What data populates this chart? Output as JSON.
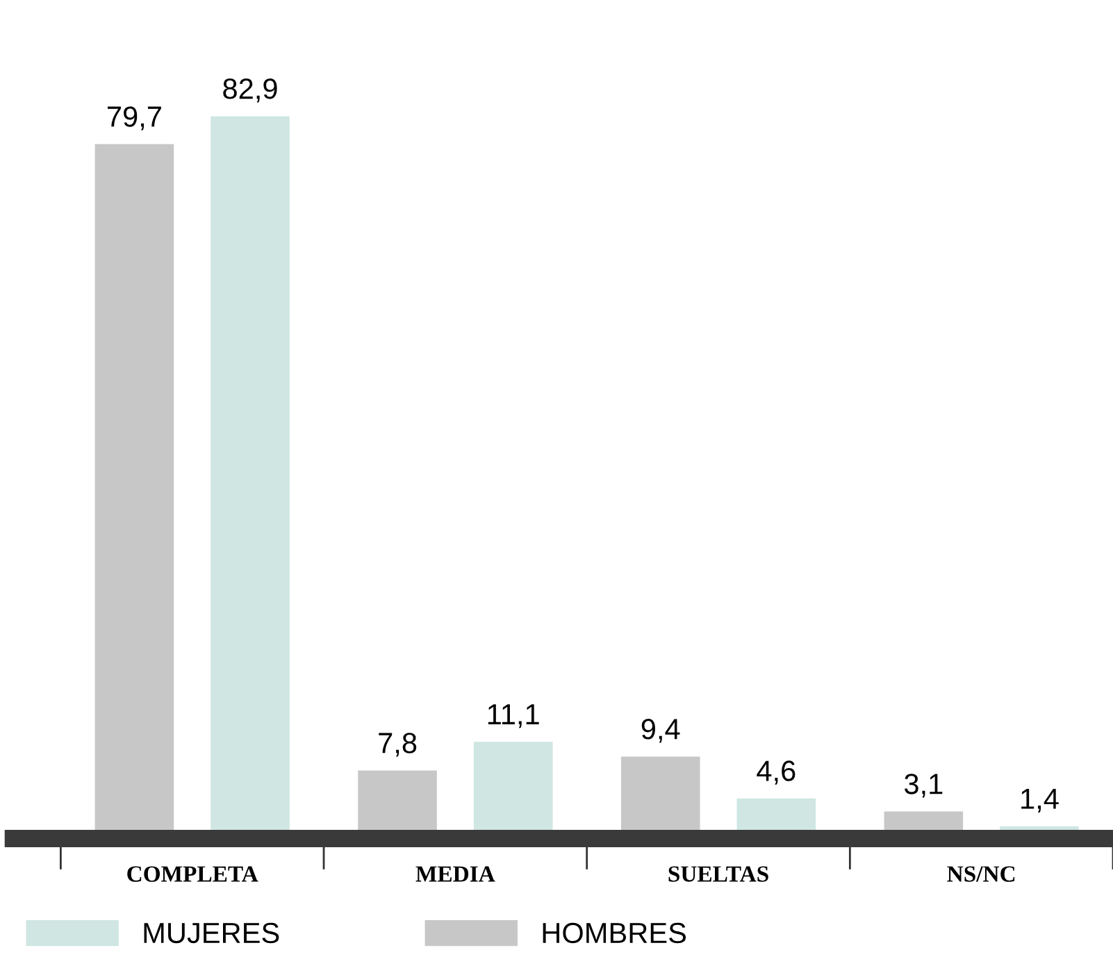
{
  "chart_data": {
    "type": "bar",
    "categories": [
      "COMPLETA",
      "MEDIA",
      "SUELTAS",
      "NS/NC"
    ],
    "series": [
      {
        "name": "HOMBRES",
        "color": "#c7c7c7",
        "values": [
          79.7,
          7.8,
          9.4,
          3.1
        ],
        "value_labels": [
          "79,7",
          "7,8",
          "9,4",
          "3,1"
        ]
      },
      {
        "name": "MUJERES",
        "color": "#cfe6e2",
        "values": [
          82.9,
          11.1,
          4.6,
          1.4
        ],
        "value_labels": [
          "82,9",
          "11,1",
          "4,6",
          "1,4"
        ]
      }
    ],
    "legend": "bottom left",
    "grid": false
  }
}
